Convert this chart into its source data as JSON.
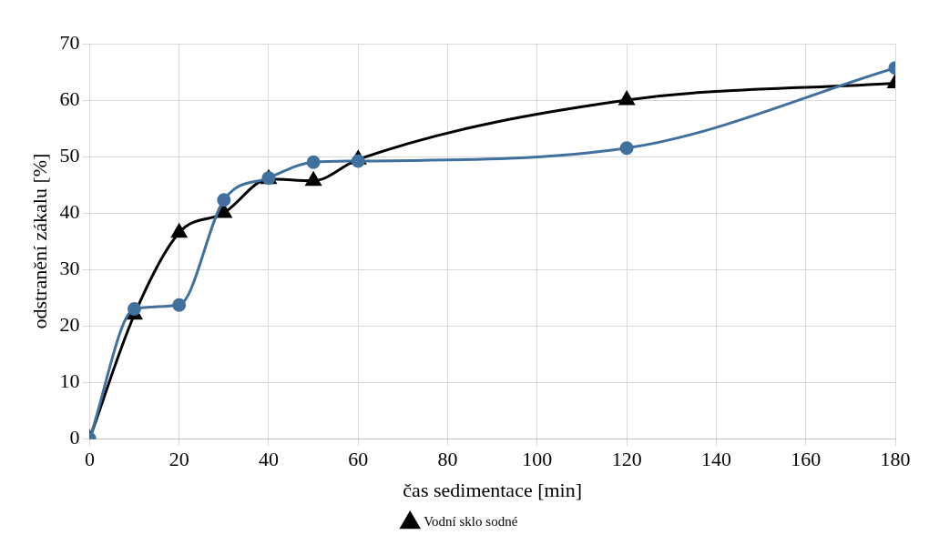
{
  "chart_data": {
    "type": "line",
    "xlabel": "čas sedimentace [min]",
    "ylabel": "odstranění zákalu [%]",
    "xlim": [
      0,
      180
    ],
    "xticks": [
      0,
      20,
      40,
      60,
      80,
      100,
      120,
      140,
      160,
      180
    ],
    "ylim": [
      0,
      70
    ],
    "yticks": [
      0,
      10,
      20,
      30,
      40,
      50,
      60,
      70
    ],
    "grid": true,
    "legend": "bottom",
    "series": [
      {
        "name": "Vodní sklo sodné",
        "color": "#000000",
        "marker": "triangle",
        "x": [
          0,
          10,
          20,
          30,
          40,
          50,
          60,
          120,
          180
        ],
        "values": [
          0,
          22,
          36.5,
          40,
          46,
          45.7,
          49.5,
          60,
          63
        ]
      },
      {
        "color": "#41709f",
        "marker": "circle",
        "x": [
          0,
          10,
          20,
          30,
          40,
          50,
          60,
          120,
          180
        ],
        "values": [
          0,
          23,
          23.7,
          42.3,
          46.2,
          49,
          49.2,
          51.5,
          65.7
        ]
      }
    ]
  }
}
